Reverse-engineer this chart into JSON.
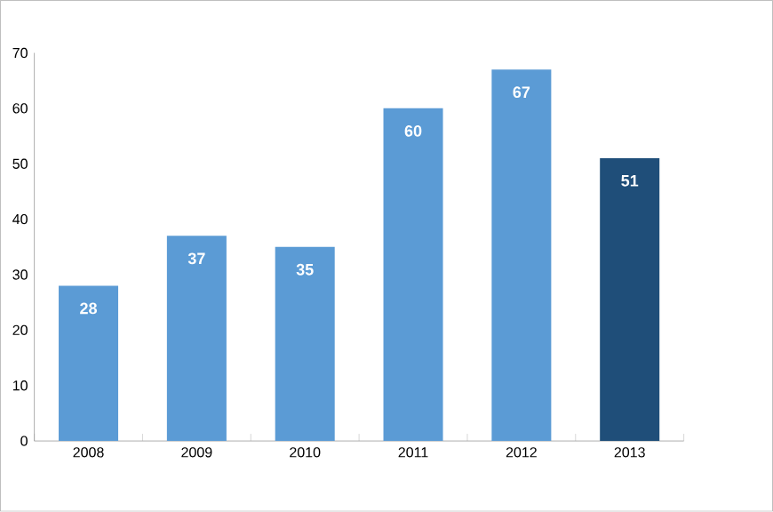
{
  "chart_data": {
    "type": "bar",
    "categories": [
      "2008",
      "2009",
      "2010",
      "2011",
      "2012",
      "2013"
    ],
    "values": [
      28,
      37,
      35,
      60,
      67,
      51
    ],
    "colors": [
      "#5b9bd5",
      "#5b9bd5",
      "#5b9bd5",
      "#5b9bd5",
      "#5b9bd5",
      "#1f4e79"
    ],
    "ylim": [
      0,
      70
    ],
    "yticks": [
      0,
      10,
      20,
      30,
      40,
      50,
      60,
      70
    ],
    "grid": false,
    "data_labels": true
  }
}
